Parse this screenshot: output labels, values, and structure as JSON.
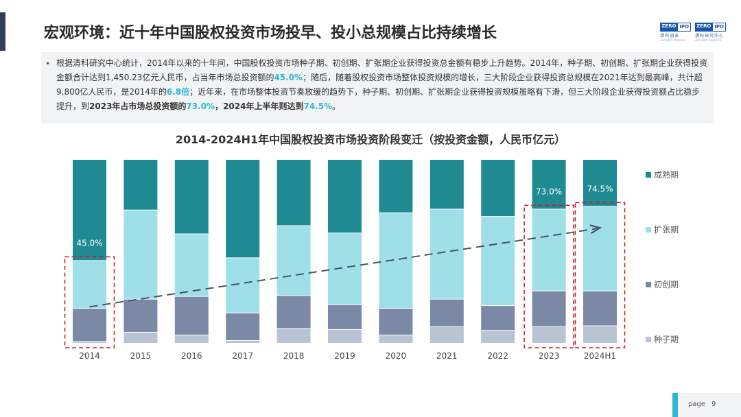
{
  "header": {
    "title": "宏观环境：近十年中国股权投资市场投早、投小总规模占比持续增长",
    "logo1": {
      "line1": "ZERO",
      "line2": "IPO",
      "sub": "清科创业",
      "tiny": "Zero2IPO Ventures"
    },
    "logo2": {
      "line1": "ZERO",
      "line2": "IPO",
      "sub": "清科研究中心",
      "tiny": "Zero2IPO Research"
    }
  },
  "summary": {
    "bullet": "•",
    "t1": "根据清科研究中心统计，2014年以来的十年间，中国股权投资市场种子期、初创期、扩张期企业获得投资总金额有稳步上升趋势。2014年，种子期、初创期、扩张期企业获得投资金额合计达到1,450.23亿元人民币，占当年市场总投资额的",
    "h1": "45.0%",
    "t2": "；随后，随着股权投资市场整体投资规模的增长，三大阶段企业获得投资总规模在2021年达到最高峰，共计超9,800亿人民币，是2014年的",
    "h2": "6.8倍",
    "t3": "；近年来，在市场整体投资节奏放缓的趋势下，种子期、初创期、扩张期企业获得投资规模虽略有下滑，但三大阶段企业获得投资额占比稳步提升，到",
    "b1": "2023年占市场总投资额的",
    "h3": "73.0%",
    "b2": "，2024年上半年则达到",
    "h4": "74.5%",
    "t4": "。"
  },
  "chart_data": {
    "type": "bar",
    "stacked": true,
    "normalized": true,
    "title": "2014-2024H1年中国股权投资市场投资阶段变迁（按投资金额，人民币亿元）",
    "categories": [
      "2014",
      "2015",
      "2016",
      "2017",
      "2018",
      "2019",
      "2020",
      "2021",
      "2022",
      "2023",
      "2024H1"
    ],
    "series": [
      {
        "name": "种子期",
        "color": "#b9c3d3",
        "values": [
          0.01,
          0.06,
          0.045,
          0.015,
          0.08,
          0.075,
          0.045,
          0.09,
          0.07,
          0.09,
          0.095
        ]
      },
      {
        "name": "初创期",
        "color": "#7b89a6",
        "values": [
          0.18,
          0.18,
          0.21,
          0.15,
          0.18,
          0.135,
          0.145,
          0.15,
          0.135,
          0.195,
          0.19
        ]
      },
      {
        "name": "扩张期",
        "color": "#9fdfe7",
        "values": [
          0.26,
          0.485,
          0.34,
          0.3,
          0.38,
          0.39,
          0.52,
          0.49,
          0.485,
          0.445,
          0.46
        ]
      },
      {
        "name": "成熟期",
        "color": "#1f8a92",
        "values": [
          0.55,
          0.275,
          0.405,
          0.535,
          0.36,
          0.4,
          0.29,
          0.27,
          0.31,
          0.27,
          0.255
        ]
      }
    ],
    "legend_order": [
      "成熟期",
      "扩张期",
      "初创期",
      "种子期"
    ],
    "legend_position": "right",
    "annotations": [
      {
        "category": "2014",
        "label": "45.0%"
      },
      {
        "category": "2023",
        "label": "73.0%"
      },
      {
        "category": "2024H1",
        "label": "74.5%"
      }
    ],
    "highlighted_categories": [
      "2014",
      "2023",
      "2024H1"
    ],
    "trend_arrow": true,
    "ylim": [
      0,
      1
    ]
  },
  "footer": {
    "page_label": "page",
    "page_number": "9"
  }
}
